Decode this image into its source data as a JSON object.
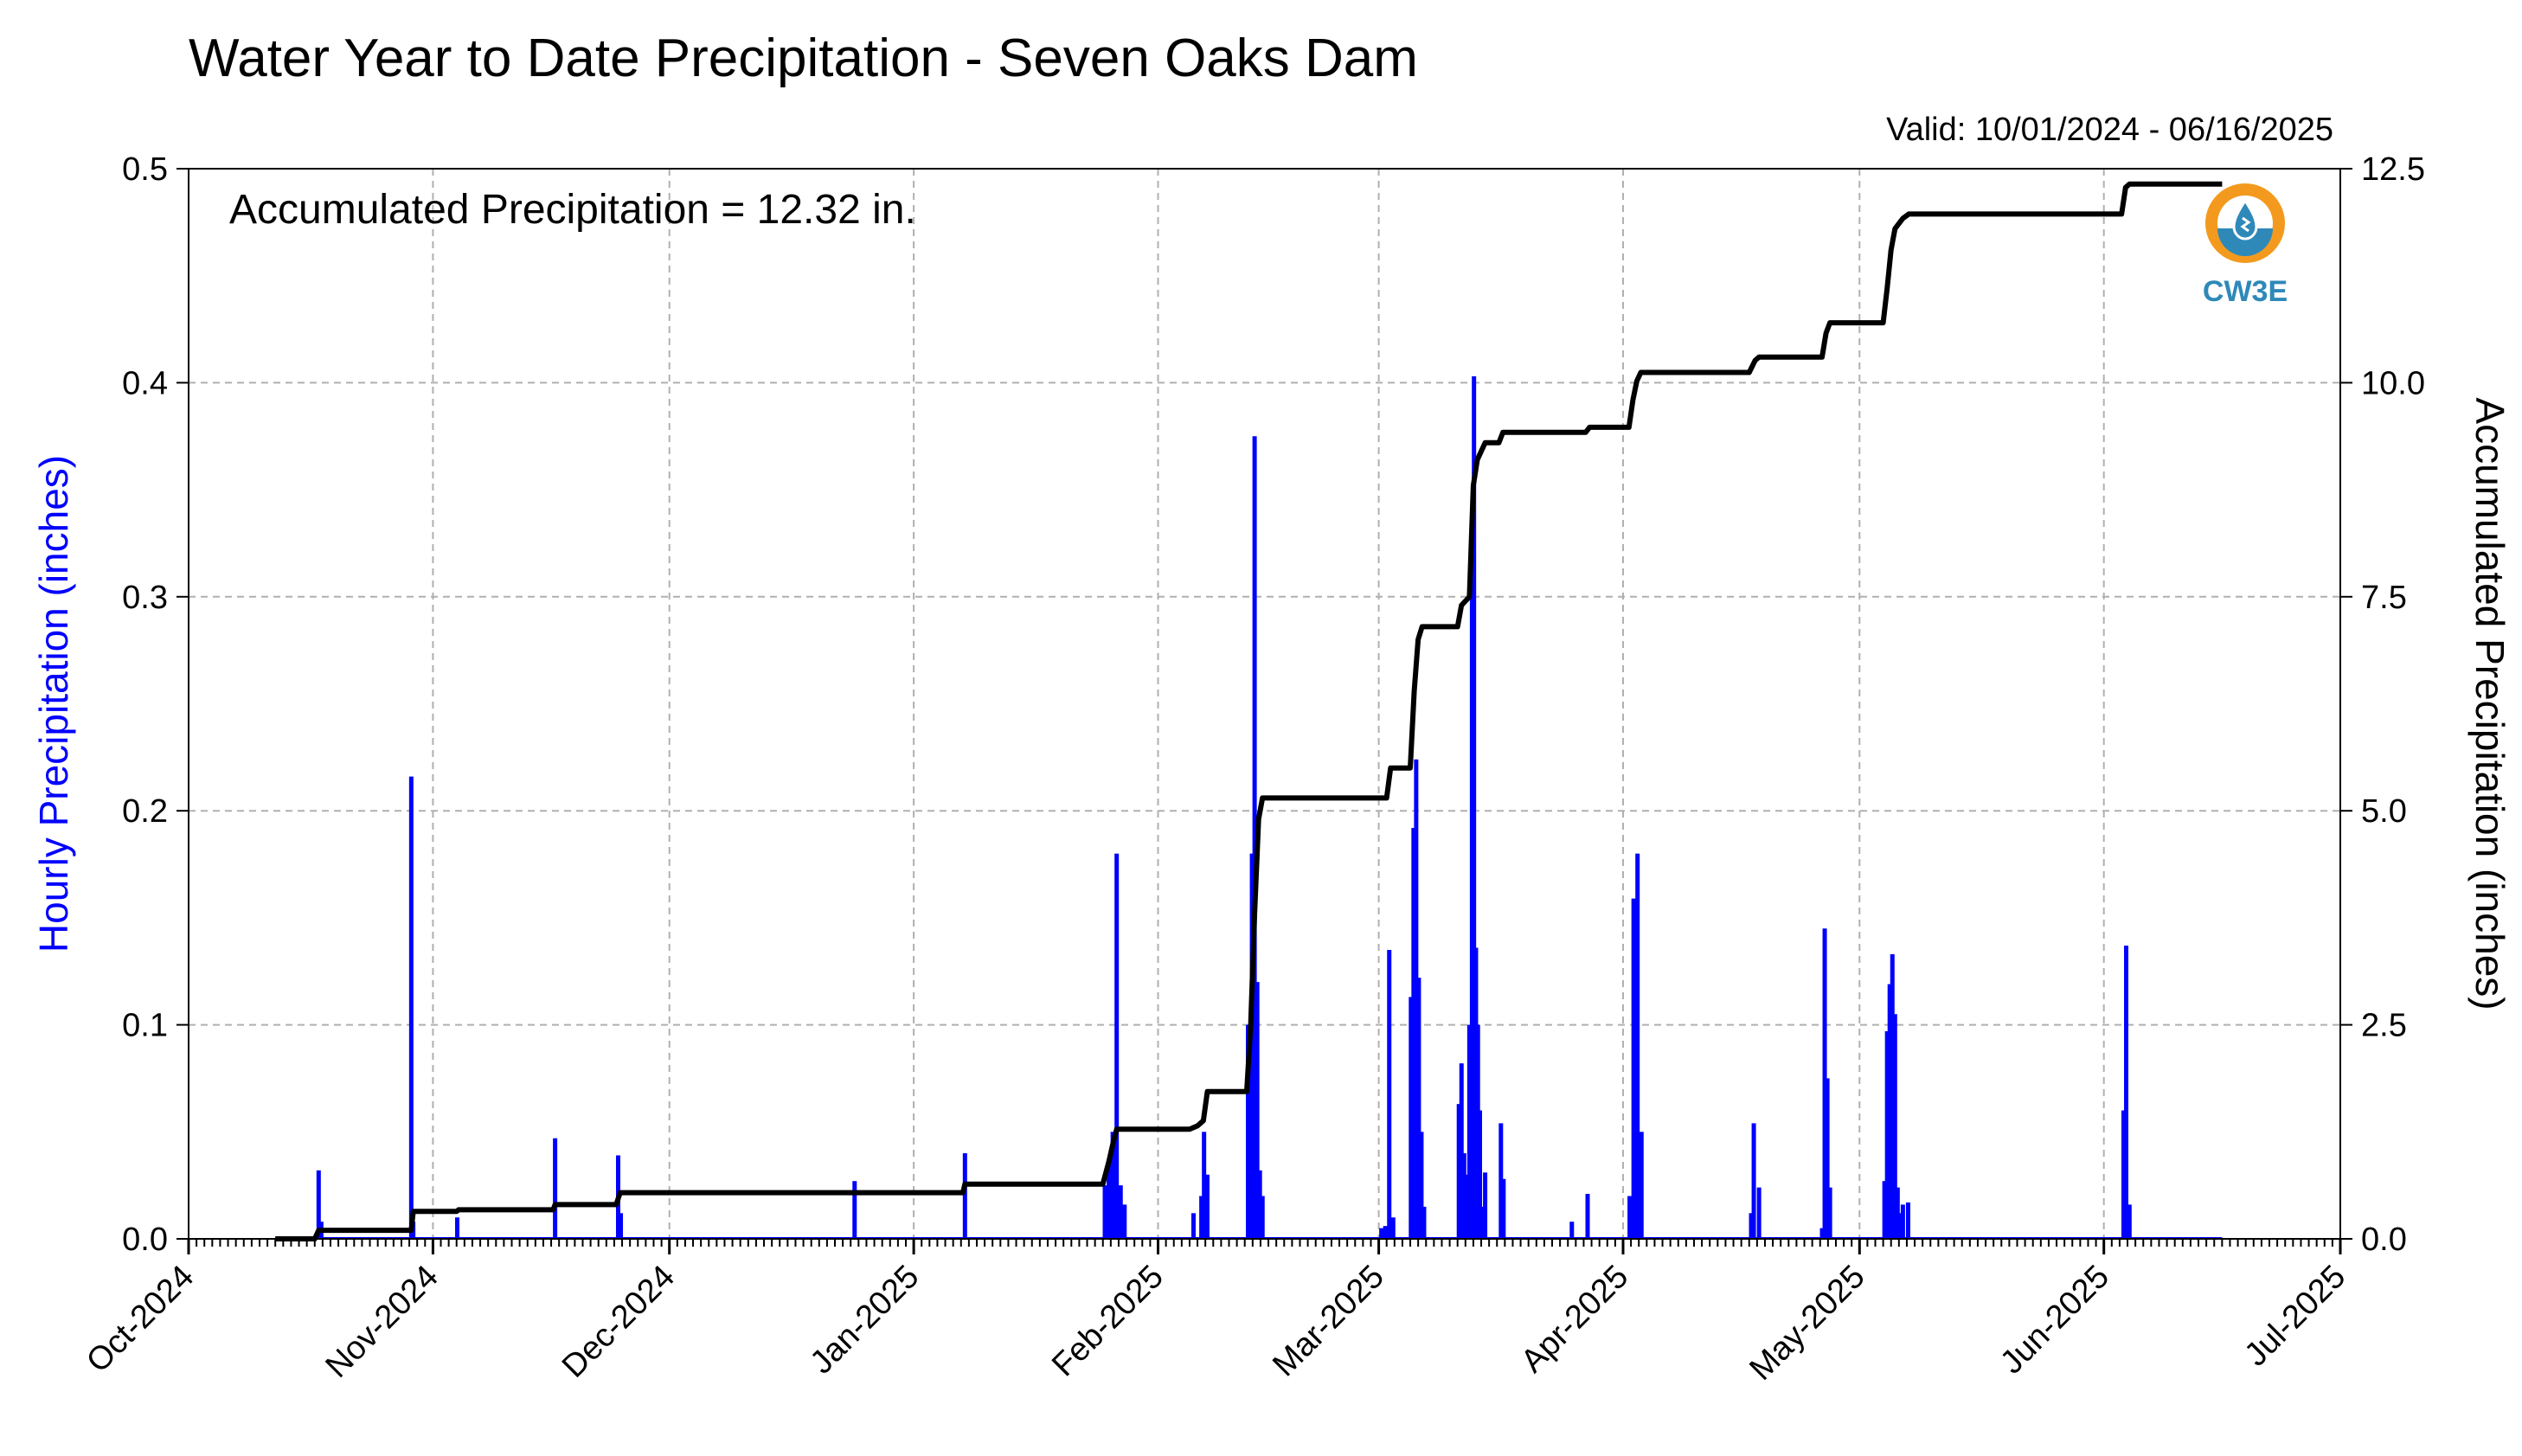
{
  "header": {
    "title": "Water Year to Date Precipitation - Seven Oaks Dam",
    "valid_text": "Valid: 10/01/2024 - 06/16/2025"
  },
  "annotation": "Accumulated Precipitation = 12.32 in.",
  "logo": {
    "text": "CW3E",
    "icon": "cw3e-logo-icon"
  },
  "colors": {
    "hourly_bar": "#0000ff",
    "accumulated_line": "#000000",
    "left_axis_label": "#0000ff",
    "logo_orange": "#f39a1e",
    "logo_blue": "#2e89b8"
  },
  "chart_data": {
    "type": "bar",
    "x_axis": {
      "start": "2024-10-01",
      "end": "2025-07-01",
      "tick_labels": [
        "Oct-2024",
        "Nov-2024",
        "Dec-2024",
        "Jan-2025",
        "Feb-2025",
        "Mar-2025",
        "Apr-2025",
        "May-2025",
        "Jun-2025",
        "Jul-2025"
      ],
      "tick_dates": [
        "2024-10-01",
        "2024-11-01",
        "2024-12-01",
        "2025-01-01",
        "2025-02-01",
        "2025-03-01",
        "2025-04-01",
        "2025-05-01",
        "2025-06-01",
        "2025-07-01"
      ],
      "minor_ticks": "daily"
    },
    "y_left": {
      "label": "Hourly Precipitation (inches)",
      "lim": [
        0,
        0.5
      ],
      "ticks": [
        0.0,
        0.1,
        0.2,
        0.3,
        0.4,
        0.5
      ],
      "tick_labels": [
        "0.0",
        "0.1",
        "0.2",
        "0.3",
        "0.4",
        "0.5"
      ]
    },
    "y_right": {
      "label": "Accumulated Precipitation (inches)",
      "lim": [
        0,
        12.5
      ],
      "ticks": [
        0.0,
        2.5,
        5.0,
        7.5,
        10.0,
        12.5
      ],
      "tick_labels": [
        "0.0",
        "2.5",
        "5.0",
        "7.5",
        "10.0",
        "12.5"
      ]
    },
    "grid": true,
    "series": [
      {
        "name": "Hourly Precipitation",
        "type": "bar",
        "axis": "left",
        "points": [
          {
            "t": "2024-10-17 12:00",
            "v": 0.032
          },
          {
            "t": "2024-10-17 20:00",
            "v": 0.008
          },
          {
            "t": "2024-10-29 06:00",
            "v": 0.216
          },
          {
            "t": "2024-10-29 12:00",
            "v": 0.008
          },
          {
            "t": "2024-11-04 02:00",
            "v": 0.01
          },
          {
            "t": "2024-11-16 12:00",
            "v": 0.047
          },
          {
            "t": "2024-11-24 12:00",
            "v": 0.039
          },
          {
            "t": "2024-11-24 20:00",
            "v": 0.012
          },
          {
            "t": "2024-12-24 12:00",
            "v": 0.027
          },
          {
            "t": "2025-01-07 12:00",
            "v": 0.04
          },
          {
            "t": "2025-01-25 06:00",
            "v": 0.025
          },
          {
            "t": "2025-01-25 18:00",
            "v": 0.035
          },
          {
            "t": "2025-01-26 06:00",
            "v": 0.05
          },
          {
            "t": "2025-01-26 18:00",
            "v": 0.18
          },
          {
            "t": "2025-01-27 06:00",
            "v": 0.025
          },
          {
            "t": "2025-01-27 18:00",
            "v": 0.016
          },
          {
            "t": "2025-02-05 12:00",
            "v": 0.012
          },
          {
            "t": "2025-02-06 12:00",
            "v": 0.02
          },
          {
            "t": "2025-02-06 20:00",
            "v": 0.05
          },
          {
            "t": "2025-02-07 06:00",
            "v": 0.03
          },
          {
            "t": "2025-02-12 10:00",
            "v": 0.1
          },
          {
            "t": "2025-02-12 22:00",
            "v": 0.18
          },
          {
            "t": "2025-02-13 06:00",
            "v": 0.375
          },
          {
            "t": "2025-02-13 14:00",
            "v": 0.12
          },
          {
            "t": "2025-02-13 22:00",
            "v": 0.032
          },
          {
            "t": "2025-02-14 06:00",
            "v": 0.02
          },
          {
            "t": "2025-03-01 08:00",
            "v": 0.005
          },
          {
            "t": "2025-03-01 20:00",
            "v": 0.006
          },
          {
            "t": "2025-03-02 08:00",
            "v": 0.135
          },
          {
            "t": "2025-03-02 20:00",
            "v": 0.01
          },
          {
            "t": "2025-03-05 02:00",
            "v": 0.113
          },
          {
            "t": "2025-03-05 10:00",
            "v": 0.192
          },
          {
            "t": "2025-03-05 18:00",
            "v": 0.224
          },
          {
            "t": "2025-03-06 02:00",
            "v": 0.122
          },
          {
            "t": "2025-03-06 10:00",
            "v": 0.05
          },
          {
            "t": "2025-03-06 18:00",
            "v": 0.015
          },
          {
            "t": "2025-03-11 04:00",
            "v": 0.063
          },
          {
            "t": "2025-03-11 12:00",
            "v": 0.082
          },
          {
            "t": "2025-03-11 20:00",
            "v": 0.04
          },
          {
            "t": "2025-03-12 04:00",
            "v": 0.03
          },
          {
            "t": "2025-03-12 12:00",
            "v": 0.1
          },
          {
            "t": "2025-03-12 20:00",
            "v": 0.3
          },
          {
            "t": "2025-03-13 02:00",
            "v": 0.403
          },
          {
            "t": "2025-03-13 08:00",
            "v": 0.136
          },
          {
            "t": "2025-03-13 14:00",
            "v": 0.1
          },
          {
            "t": "2025-03-13 20:00",
            "v": 0.06
          },
          {
            "t": "2025-03-14 04:00",
            "v": 0.015
          },
          {
            "t": "2025-03-14 12:00",
            "v": 0.031
          },
          {
            "t": "2025-03-16 12:00",
            "v": 0.054
          },
          {
            "t": "2025-03-16 20:00",
            "v": 0.028
          },
          {
            "t": "2025-03-25 12:00",
            "v": 0.008
          },
          {
            "t": "2025-03-27 12:00",
            "v": 0.021
          },
          {
            "t": "2025-04-01 20:00",
            "v": 0.02
          },
          {
            "t": "2025-04-02 08:00",
            "v": 0.159
          },
          {
            "t": "2025-04-02 20:00",
            "v": 0.18
          },
          {
            "t": "2025-04-03 08:00",
            "v": 0.05
          },
          {
            "t": "2025-04-17 06:00",
            "v": 0.012
          },
          {
            "t": "2025-04-17 14:00",
            "v": 0.054
          },
          {
            "t": "2025-04-18 06:00",
            "v": 0.024
          },
          {
            "t": "2025-04-26 06:00",
            "v": 0.005
          },
          {
            "t": "2025-04-26 14:00",
            "v": 0.145
          },
          {
            "t": "2025-04-26 22:00",
            "v": 0.075
          },
          {
            "t": "2025-04-27 06:00",
            "v": 0.024
          },
          {
            "t": "2025-05-04 04:00",
            "v": 0.027
          },
          {
            "t": "2025-05-04 12:00",
            "v": 0.097
          },
          {
            "t": "2025-05-04 20:00",
            "v": 0.119
          },
          {
            "t": "2025-05-05 04:00",
            "v": 0.133
          },
          {
            "t": "2025-05-05 12:00",
            "v": 0.105
          },
          {
            "t": "2025-05-05 20:00",
            "v": 0.024
          },
          {
            "t": "2025-05-06 04:00",
            "v": 0.012
          },
          {
            "t": "2025-05-06 12:00",
            "v": 0.016
          },
          {
            "t": "2025-05-07 04:00",
            "v": 0.017
          },
          {
            "t": "2025-06-03 12:00",
            "v": 0.06
          },
          {
            "t": "2025-06-03 20:00",
            "v": 0.137
          },
          {
            "t": "2025-06-04 06:00",
            "v": 0.016
          }
        ]
      },
      {
        "name": "Accumulated Precipitation",
        "type": "line",
        "axis": "right",
        "points": [
          {
            "t": "2024-10-12",
            "v": 0.0
          },
          {
            "t": "2024-10-17",
            "v": 0.0
          },
          {
            "t": "2024-10-17 12:00",
            "v": 0.1
          },
          {
            "t": "2024-10-29 06:00",
            "v": 0.1
          },
          {
            "t": "2024-10-29 12:00",
            "v": 0.32
          },
          {
            "t": "2024-11-04",
            "v": 0.32
          },
          {
            "t": "2024-11-04 06:00",
            "v": 0.34
          },
          {
            "t": "2024-11-16 06:00",
            "v": 0.34
          },
          {
            "t": "2024-11-16 12:00",
            "v": 0.4
          },
          {
            "t": "2024-11-24 06:00",
            "v": 0.4
          },
          {
            "t": "2024-11-24 18:00",
            "v": 0.54
          },
          {
            "t": "2025-01-07 06:00",
            "v": 0.54
          },
          {
            "t": "2025-01-07 12:00",
            "v": 0.64
          },
          {
            "t": "2025-01-25 00:00",
            "v": 0.64
          },
          {
            "t": "2025-01-25 18:00",
            "v": 0.9
          },
          {
            "t": "2025-01-26 06:00",
            "v": 1.1
          },
          {
            "t": "2025-01-26 18:00",
            "v": 1.28
          },
          {
            "t": "2025-02-05",
            "v": 1.28
          },
          {
            "t": "2025-02-06 00:00",
            "v": 1.32
          },
          {
            "t": "2025-02-06 18:00",
            "v": 1.38
          },
          {
            "t": "2025-02-07 06:00",
            "v": 1.72
          },
          {
            "t": "2025-02-12 06:00",
            "v": 1.72
          },
          {
            "t": "2025-02-12 18:00",
            "v": 2.5
          },
          {
            "t": "2025-02-13 06:00",
            "v": 3.8
          },
          {
            "t": "2025-02-13 18:00",
            "v": 4.9
          },
          {
            "t": "2025-02-14 06:00",
            "v": 5.15
          },
          {
            "t": "2025-03-02 00:00",
            "v": 5.15
          },
          {
            "t": "2025-03-02 12:00",
            "v": 5.5
          },
          {
            "t": "2025-03-05 00:00",
            "v": 5.5
          },
          {
            "t": "2025-03-05 12:00",
            "v": 6.4
          },
          {
            "t": "2025-03-06 00:00",
            "v": 7.0
          },
          {
            "t": "2025-03-06 12:00",
            "v": 7.15
          },
          {
            "t": "2025-03-11 00:00",
            "v": 7.15
          },
          {
            "t": "2025-03-11 12:00",
            "v": 7.4
          },
          {
            "t": "2025-03-12 12:00",
            "v": 7.5
          },
          {
            "t": "2025-03-13 00:00",
            "v": 8.8
          },
          {
            "t": "2025-03-13 12:00",
            "v": 9.1
          },
          {
            "t": "2025-03-14 12:00",
            "v": 9.3
          },
          {
            "t": "2025-03-16 06:00",
            "v": 9.3
          },
          {
            "t": "2025-03-16 18:00",
            "v": 9.42
          },
          {
            "t": "2025-03-27 06:00",
            "v": 9.42
          },
          {
            "t": "2025-03-27 18:00",
            "v": 9.48
          },
          {
            "t": "2025-04-01 18:00",
            "v": 9.48
          },
          {
            "t": "2025-04-02 06:00",
            "v": 9.8
          },
          {
            "t": "2025-04-02 18:00",
            "v": 10.02
          },
          {
            "t": "2025-04-03 06:00",
            "v": 10.12
          },
          {
            "t": "2025-04-17 00:00",
            "v": 10.12
          },
          {
            "t": "2025-04-17 18:00",
            "v": 10.26
          },
          {
            "t": "2025-04-18 06:00",
            "v": 10.3
          },
          {
            "t": "2025-04-26 06:00",
            "v": 10.3
          },
          {
            "t": "2025-04-26 18:00",
            "v": 10.58
          },
          {
            "t": "2025-04-27 06:00",
            "v": 10.7
          },
          {
            "t": "2025-05-04 00:00",
            "v": 10.7
          },
          {
            "t": "2025-05-04 12:00",
            "v": 11.1
          },
          {
            "t": "2025-05-05 00:00",
            "v": 11.55
          },
          {
            "t": "2025-05-05 12:00",
            "v": 11.8
          },
          {
            "t": "2025-05-06 12:00",
            "v": 11.92
          },
          {
            "t": "2025-05-07 06:00",
            "v": 11.97
          },
          {
            "t": "2025-06-03 06:00",
            "v": 11.97
          },
          {
            "t": "2025-06-03 18:00",
            "v": 12.28
          },
          {
            "t": "2025-06-04 06:00",
            "v": 12.32
          },
          {
            "t": "2025-06-16",
            "v": 12.32
          }
        ]
      }
    ]
  }
}
